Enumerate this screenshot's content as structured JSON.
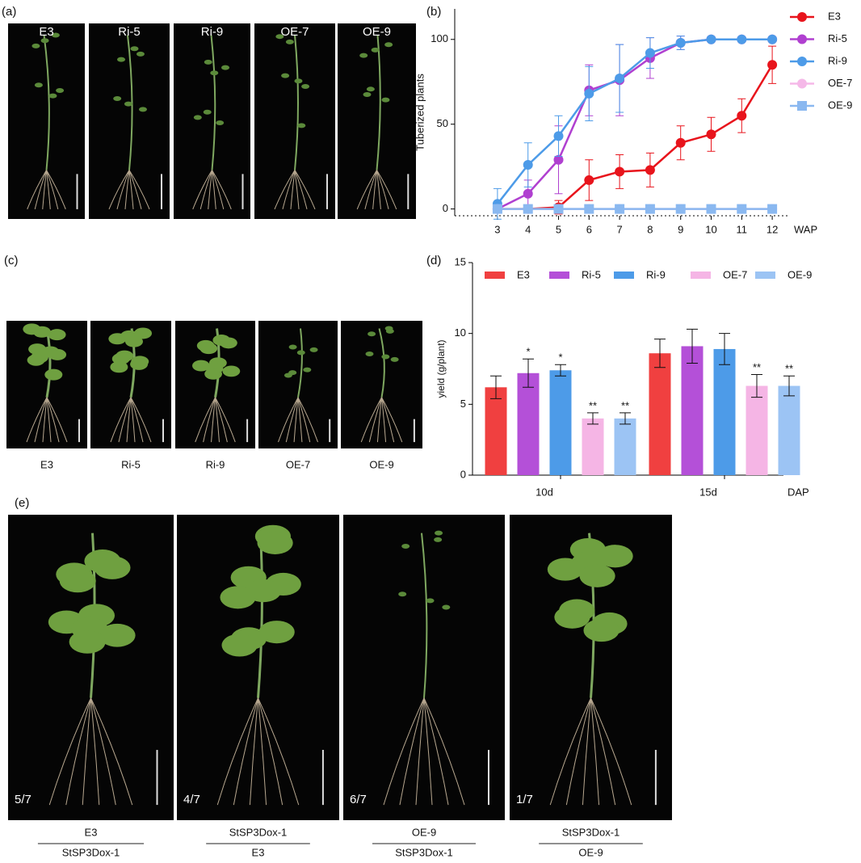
{
  "panel_labels": {
    "a": "(a)",
    "b": "(b)",
    "c": "(c)",
    "d": "(d)",
    "e": "(e)"
  },
  "photos_a": {
    "labels": [
      "E3",
      "Ri-5",
      "Ri-9",
      "OE-7",
      "OE-9"
    ]
  },
  "photos_c": {
    "labels": [
      "E3",
      "Ri-5",
      "Ri-9",
      "OE-7",
      "OE-9"
    ]
  },
  "photos_e": {
    "fractions": [
      "5/7",
      "4/7",
      "6/7",
      "1/7"
    ],
    "grafts": [
      {
        "scion": "E3",
        "stock": "StSP3Dox-1"
      },
      {
        "scion": "StSP3Dox-1",
        "stock": "E3"
      },
      {
        "scion": "OE-9",
        "stock": "StSP3Dox-1"
      },
      {
        "scion": "StSP3Dox-1",
        "stock": "OE-9"
      }
    ]
  },
  "chart_data": [
    {
      "type": "line",
      "y_label": "Tuberized plants",
      "x_label": "WAP",
      "x": [
        3,
        4,
        5,
        6,
        7,
        8,
        9,
        10,
        11,
        12
      ],
      "xlim": [
        1.6,
        12.5
      ],
      "xticks": [
        3,
        4,
        5,
        6,
        7,
        8,
        9,
        10,
        11,
        12
      ],
      "ylim": [
        -4,
        118
      ],
      "yticks": [
        0,
        50,
        100
      ],
      "series": [
        {
          "name": "E3",
          "color": "#e8141c",
          "marker": "circle",
          "values": [
            0,
            0,
            1,
            17,
            22,
            23,
            39,
            44,
            55,
            85
          ],
          "errors": [
            0,
            0,
            4,
            12,
            10,
            10,
            10,
            10,
            10,
            11
          ]
        },
        {
          "name": "Ri-5",
          "color": "#b040d0",
          "marker": "circle",
          "values": [
            0,
            9,
            29,
            70,
            76,
            89,
            98,
            100,
            100,
            100
          ],
          "errors": [
            0,
            8,
            20,
            15,
            21,
            12,
            4,
            0,
            0,
            0
          ]
        },
        {
          "name": "Ri-9",
          "color": "#4d9be8",
          "marker": "circle",
          "values": [
            3,
            26,
            43,
            68,
            77,
            92,
            98,
            100,
            100,
            100
          ],
          "errors": [
            9,
            13,
            12,
            16,
            20,
            9,
            4,
            0,
            0,
            0
          ]
        },
        {
          "name": "OE-7",
          "color": "#f5b8e8",
          "marker": "circle",
          "values": [
            0,
            0,
            0,
            0,
            0,
            0,
            0,
            0,
            0,
            0
          ],
          "errors": [
            0,
            0,
            0,
            0,
            0,
            0,
            0,
            0,
            0,
            0
          ]
        },
        {
          "name": "OE-9",
          "color": "#8ab8f0",
          "marker": "square",
          "values": [
            0,
            0,
            0,
            0,
            0,
            0,
            0,
            0,
            0,
            0
          ],
          "errors": [
            0,
            0,
            0,
            0,
            0,
            0,
            0,
            0,
            0,
            0
          ]
        }
      ]
    },
    {
      "type": "bar",
      "y_label": "yield (g/plant)",
      "x_label": "DAP",
      "categories": [
        "10d",
        "15d"
      ],
      "ylim": [
        0,
        15
      ],
      "yticks": [
        0,
        5,
        10,
        15
      ],
      "series": [
        {
          "name": "E3",
          "color": "#f04040",
          "values": [
            6.2,
            8.6
          ],
          "errors": [
            0.8,
            1.0
          ],
          "significance": [
            null,
            null
          ]
        },
        {
          "name": "Ri-5",
          "color": "#b450d8",
          "values": [
            7.2,
            9.1
          ],
          "errors": [
            1.0,
            1.2
          ],
          "significance": [
            "*",
            null
          ]
        },
        {
          "name": "Ri-9",
          "color": "#4d9be8",
          "values": [
            7.4,
            8.9
          ],
          "errors": [
            0.4,
            1.1
          ],
          "significance": [
            "*",
            null
          ]
        },
        {
          "name": "OE-7",
          "color": "#f5b5e5",
          "values": [
            4.0,
            6.3
          ],
          "errors": [
            0.4,
            0.8
          ],
          "significance": [
            "**",
            "**"
          ]
        },
        {
          "name": "OE-9",
          "color": "#9cc4f4",
          "values": [
            4.0,
            6.3
          ],
          "errors": [
            0.4,
            0.7
          ],
          "significance": [
            "**",
            "**"
          ]
        }
      ]
    }
  ]
}
